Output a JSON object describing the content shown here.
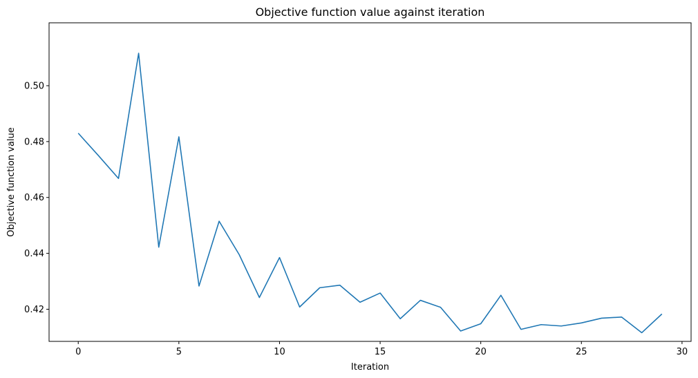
{
  "chart_data": {
    "type": "line",
    "title": "Objective function value against iteration",
    "xlabel": "Iteration",
    "ylabel": "Objective function value",
    "xlim": [
      -1.45,
      30.45
    ],
    "ylim": [
      0.4085,
      0.5225
    ],
    "xticks": [
      0,
      5,
      10,
      15,
      20,
      25,
      30
    ],
    "xtick_labels": [
      "0",
      "5",
      "10",
      "15",
      "20",
      "25",
      "30"
    ],
    "yticks": [
      0.42,
      0.44,
      0.46,
      0.48,
      0.5
    ],
    "ytick_labels": [
      "0.42",
      "0.44",
      "0.46",
      "0.48",
      "0.50"
    ],
    "grid": false,
    "legend": "none",
    "series": [
      {
        "color": "#1f77b4",
        "x": [
          0,
          1,
          2,
          3,
          4,
          5,
          6,
          7,
          8,
          9,
          10,
          11,
          12,
          13,
          14,
          15,
          16,
          17,
          18,
          19,
          20,
          21,
          22,
          23,
          24,
          25,
          26,
          27,
          28,
          29
        ],
        "y": [
          0.483,
          0.475,
          0.4668,
          0.5116,
          0.4422,
          0.4817,
          0.4283,
          0.4515,
          0.4395,
          0.4242,
          0.4385,
          0.4208,
          0.4277,
          0.4286,
          0.4225,
          0.4258,
          0.4166,
          0.4232,
          0.4207,
          0.4122,
          0.4148,
          0.425,
          0.4128,
          0.4145,
          0.414,
          0.4151,
          0.4168,
          0.4172,
          0.4116,
          0.4183
        ]
      }
    ]
  }
}
